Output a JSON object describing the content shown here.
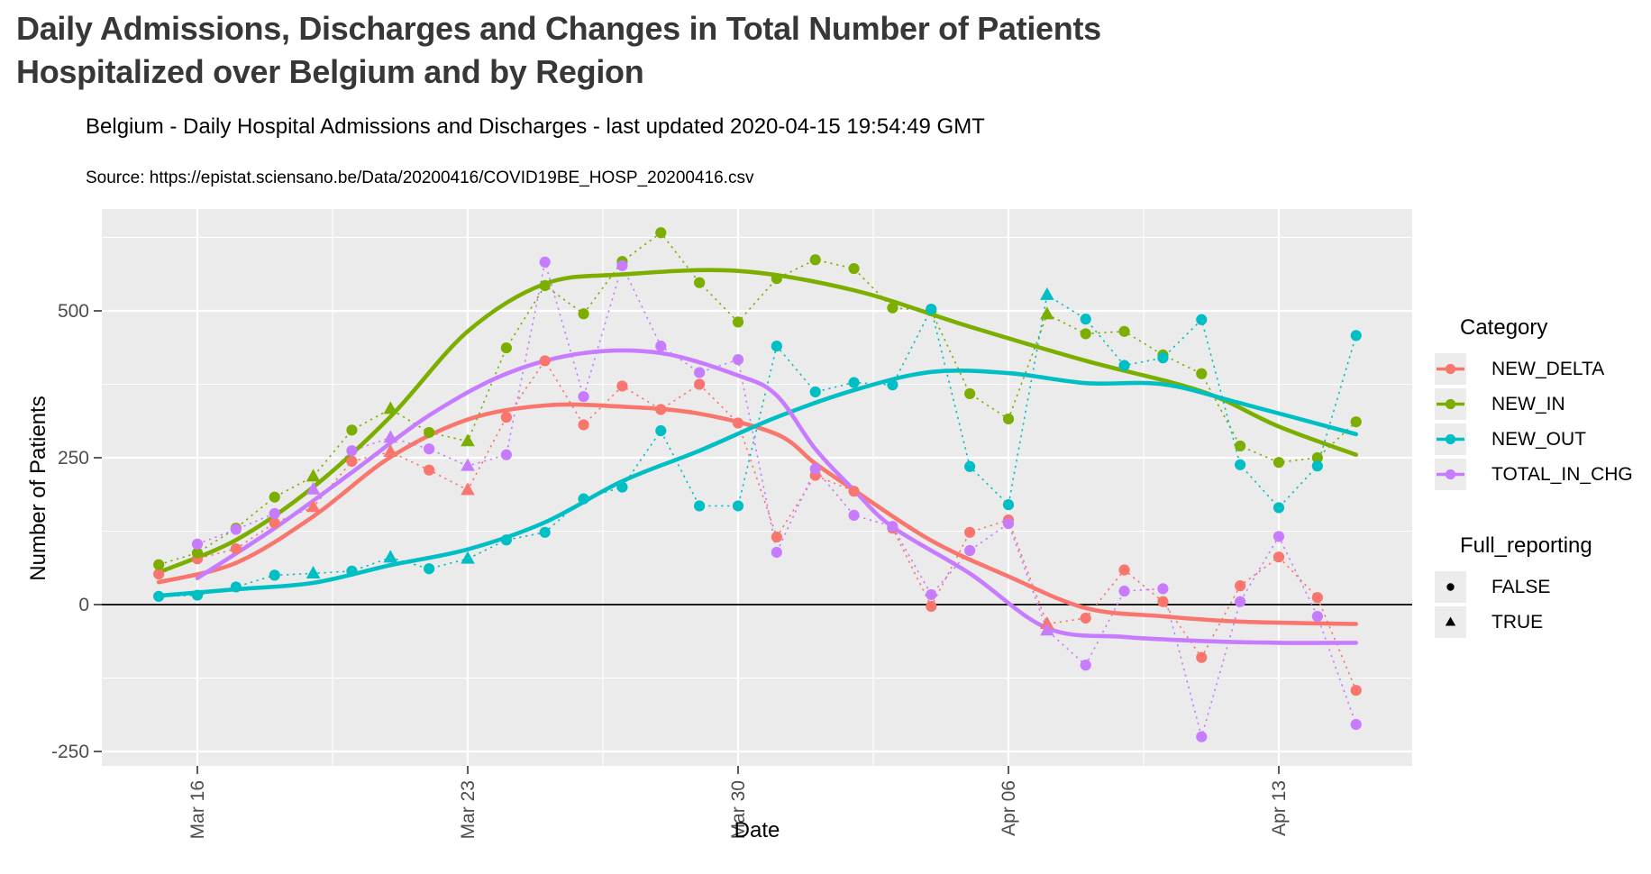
{
  "page": {
    "title": "Daily Admissions, Discharges and Changes in Total Number of Patients Hospitalized over Belgium and by Region"
  },
  "chart_data": {
    "type": "line",
    "title": "Belgium - Daily Hospital Admissions and Discharges - last updated 2020-04-15 19:54:49 GMT",
    "source": "Source: https://epistat.sciensano.be/Data/20200416/COVID19BE_HOSP_20200416.csv",
    "xlabel": "Date",
    "ylabel": "Number of Patients",
    "ylim": [
      -275,
      675
    ],
    "yticks": [
      -250,
      0,
      250,
      500
    ],
    "grid": true,
    "panel_color": "#EBEBEB",
    "grid_color": "#FFFFFF",
    "axis_text_color": "#4D4D4D",
    "zero_line_value": 0,
    "x_dates": [
      "Mar 15",
      "Mar 16",
      "Mar 17",
      "Mar 18",
      "Mar 19",
      "Mar 20",
      "Mar 21",
      "Mar 22",
      "Mar 23",
      "Mar 24",
      "Mar 25",
      "Mar 26",
      "Mar 27",
      "Mar 28",
      "Mar 29",
      "Mar 30",
      "Mar 31",
      "Apr 01",
      "Apr 02",
      "Apr 03",
      "Apr 04",
      "Apr 05",
      "Apr 06",
      "Apr 07",
      "Apr 08",
      "Apr 09",
      "Apr 10",
      "Apr 11",
      "Apr 12",
      "Apr 13",
      "Apr 14",
      "Apr 15"
    ],
    "x_tick_labels": [
      "Mar 16",
      "Mar 23",
      "Mar 30",
      "Apr 06",
      "Apr 13"
    ],
    "x_tick_days": [
      1,
      8,
      15,
      22,
      29
    ],
    "x_minor_days": [
      4.5,
      11.5,
      18.5,
      25.5
    ],
    "y_minor": [
      -125,
      125,
      375,
      625
    ],
    "full_reporting": [
      false,
      false,
      false,
      false,
      true,
      false,
      true,
      false,
      true,
      false,
      false,
      false,
      false,
      false,
      false,
      false,
      false,
      false,
      false,
      false,
      false,
      false,
      false,
      true,
      false,
      false,
      false,
      false,
      false,
      false,
      false,
      false
    ],
    "series": [
      {
        "name": "NEW_DELTA",
        "color": "#F8766D",
        "values": [
          52,
          78,
          95,
          139,
          166,
          244,
          260,
          229,
          195,
          319,
          415,
          306,
          372,
          332,
          375,
          309,
          115,
          220,
          193,
          130,
          -3,
          123,
          144,
          -33,
          -23,
          59,
          5,
          -90,
          32,
          81,
          12,
          -146
        ],
        "trend_days": [
          0,
          2,
          4,
          6,
          8,
          10,
          12,
          14,
          16,
          17,
          18,
          20,
          22,
          24,
          26,
          28,
          31
        ],
        "trend_values": [
          38,
          71,
          150,
          251,
          315,
          339,
          337,
          325,
          290,
          240,
          195,
          109,
          48,
          -6,
          -20,
          -29,
          -33
        ]
      },
      {
        "name": "NEW_IN",
        "color": "#7CAE00",
        "values": [
          68,
          88,
          130,
          183,
          218,
          297,
          333,
          293,
          278,
          437,
          543,
          495,
          584,
          633,
          548,
          481,
          555,
          587,
          572,
          505,
          500,
          359,
          316,
          494,
          461,
          465,
          425,
          393,
          270,
          242,
          250,
          311
        ],
        "trend_days": [
          0,
          2,
          4,
          6,
          8,
          10,
          12,
          15,
          18,
          21,
          24,
          27,
          29,
          31
        ],
        "trend_values": [
          55,
          110,
          200,
          320,
          465,
          546,
          562,
          568,
          535,
          473,
          415,
          363,
          303,
          255
        ]
      },
      {
        "name": "NEW_OUT",
        "color": "#00BFC4",
        "values": [
          14,
          16,
          30,
          50,
          53,
          57,
          80,
          61,
          78,
          110,
          123,
          180,
          200,
          296,
          168,
          168,
          440,
          362,
          378,
          374,
          503,
          235,
          170,
          527,
          486,
          407,
          420,
          485,
          238,
          165,
          236,
          458
        ],
        "trend_days": [
          0,
          2,
          4,
          6,
          8,
          10,
          12,
          14,
          16,
          18,
          20,
          22,
          24,
          26,
          28,
          31
        ],
        "trend_values": [
          15,
          26,
          37,
          67,
          94,
          140,
          210,
          262,
          319,
          365,
          396,
          394,
          377,
          375,
          343,
          290
        ]
      },
      {
        "name": "TOTAL_IN_CHG",
        "color": "#C77CFF",
        "values": [
          null,
          103,
          128,
          155,
          196,
          262,
          284,
          265,
          236,
          255,
          583,
          354,
          577,
          440,
          395,
          417,
          89,
          231,
          152,
          133,
          17,
          92,
          138,
          -44,
          -103,
          23,
          27,
          -225,
          5,
          116,
          -20,
          -204
        ],
        "trend_days": [
          1,
          3,
          5,
          7,
          9,
          11,
          13,
          15,
          16,
          17,
          18,
          19,
          21,
          23,
          25,
          27,
          29,
          31
        ],
        "trend_values": [
          45,
          130,
          225,
          322,
          393,
          428,
          428,
          390,
          356,
          265,
          195,
          132,
          53,
          -40,
          -55,
          -62,
          -65,
          -65
        ]
      }
    ],
    "legend": {
      "category_title": "Category",
      "shape_title": "Full_reporting",
      "shape_items": [
        {
          "label": "FALSE",
          "shape": "circle"
        },
        {
          "label": "TRUE",
          "shape": "triangle"
        }
      ]
    }
  }
}
